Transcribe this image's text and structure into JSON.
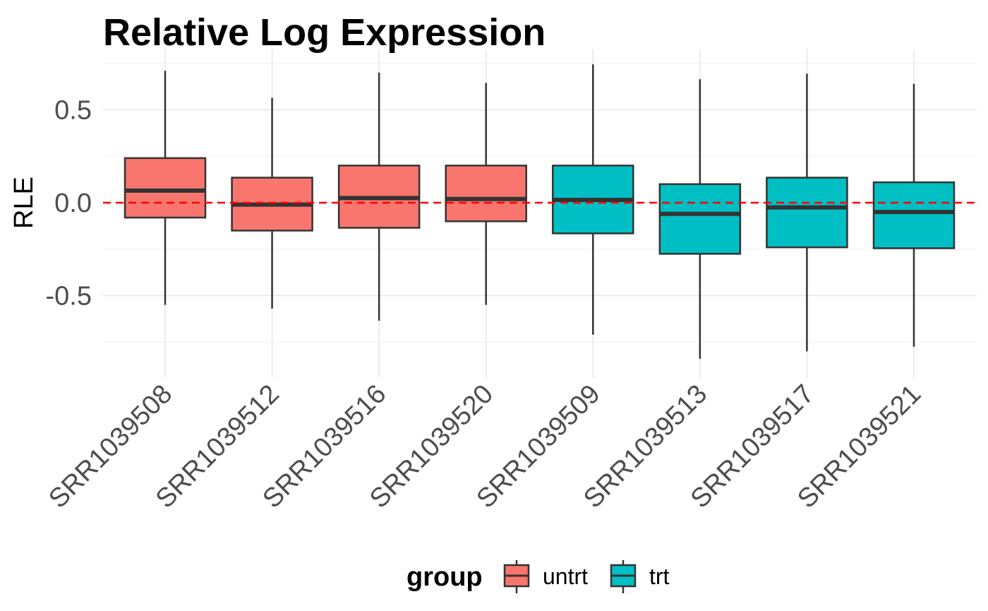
{
  "chart_data": {
    "type": "box",
    "title": "Relative Log Expression",
    "xlabel": "",
    "ylabel": "RLE",
    "ylim": [
      -0.94,
      0.76
    ],
    "yticks": [
      -0.5,
      0.0,
      0.5
    ],
    "ytick_labels": [
      "-0.5",
      "0.0",
      "0.5"
    ],
    "grid": true,
    "reference_line": {
      "y": 0,
      "color": "#ff0000",
      "style": "dashed"
    },
    "categories": [
      "SRR1039508",
      "SRR1039512",
      "SRR1039516",
      "SRR1039520",
      "SRR1039509",
      "SRR1039513",
      "SRR1039517",
      "SRR1039521"
    ],
    "groups": [
      "untrt",
      "untrt",
      "untrt",
      "untrt",
      "trt",
      "trt",
      "trt",
      "trt"
    ],
    "boxes": [
      {
        "whisker_low": -0.55,
        "q1": -0.08,
        "median": 0.065,
        "q3": 0.24,
        "whisker_high": 0.71
      },
      {
        "whisker_low": -0.57,
        "q1": -0.15,
        "median": -0.01,
        "q3": 0.135,
        "whisker_high": 0.565
      },
      {
        "whisker_low": -0.635,
        "q1": -0.135,
        "median": 0.025,
        "q3": 0.2,
        "whisker_high": 0.7
      },
      {
        "whisker_low": -0.55,
        "q1": -0.1,
        "median": 0.02,
        "q3": 0.2,
        "whisker_high": 0.645
      },
      {
        "whisker_low": -0.71,
        "q1": -0.165,
        "median": 0.015,
        "q3": 0.2,
        "whisker_high": 0.745
      },
      {
        "whisker_low": -0.84,
        "q1": -0.275,
        "median": -0.06,
        "q3": 0.1,
        "whisker_high": 0.665
      },
      {
        "whisker_low": -0.8,
        "q1": -0.24,
        "median": -0.025,
        "q3": 0.135,
        "whisker_high": 0.695
      },
      {
        "whisker_low": -0.775,
        "q1": -0.245,
        "median": -0.05,
        "q3": 0.11,
        "whisker_high": 0.64
      }
    ],
    "legend": {
      "title": "group",
      "position": "bottom",
      "entries": [
        {
          "label": "untrt",
          "color": "#F8766D"
        },
        {
          "label": "trt",
          "color": "#00BFC4"
        }
      ]
    },
    "colors": {
      "untrt": "#F8766D",
      "trt": "#00BFC4",
      "box_stroke": "#333333",
      "grid_major": "#e6e6e6",
      "grid_minor": "#f0f0f0",
      "reference": "#ff0000"
    }
  }
}
